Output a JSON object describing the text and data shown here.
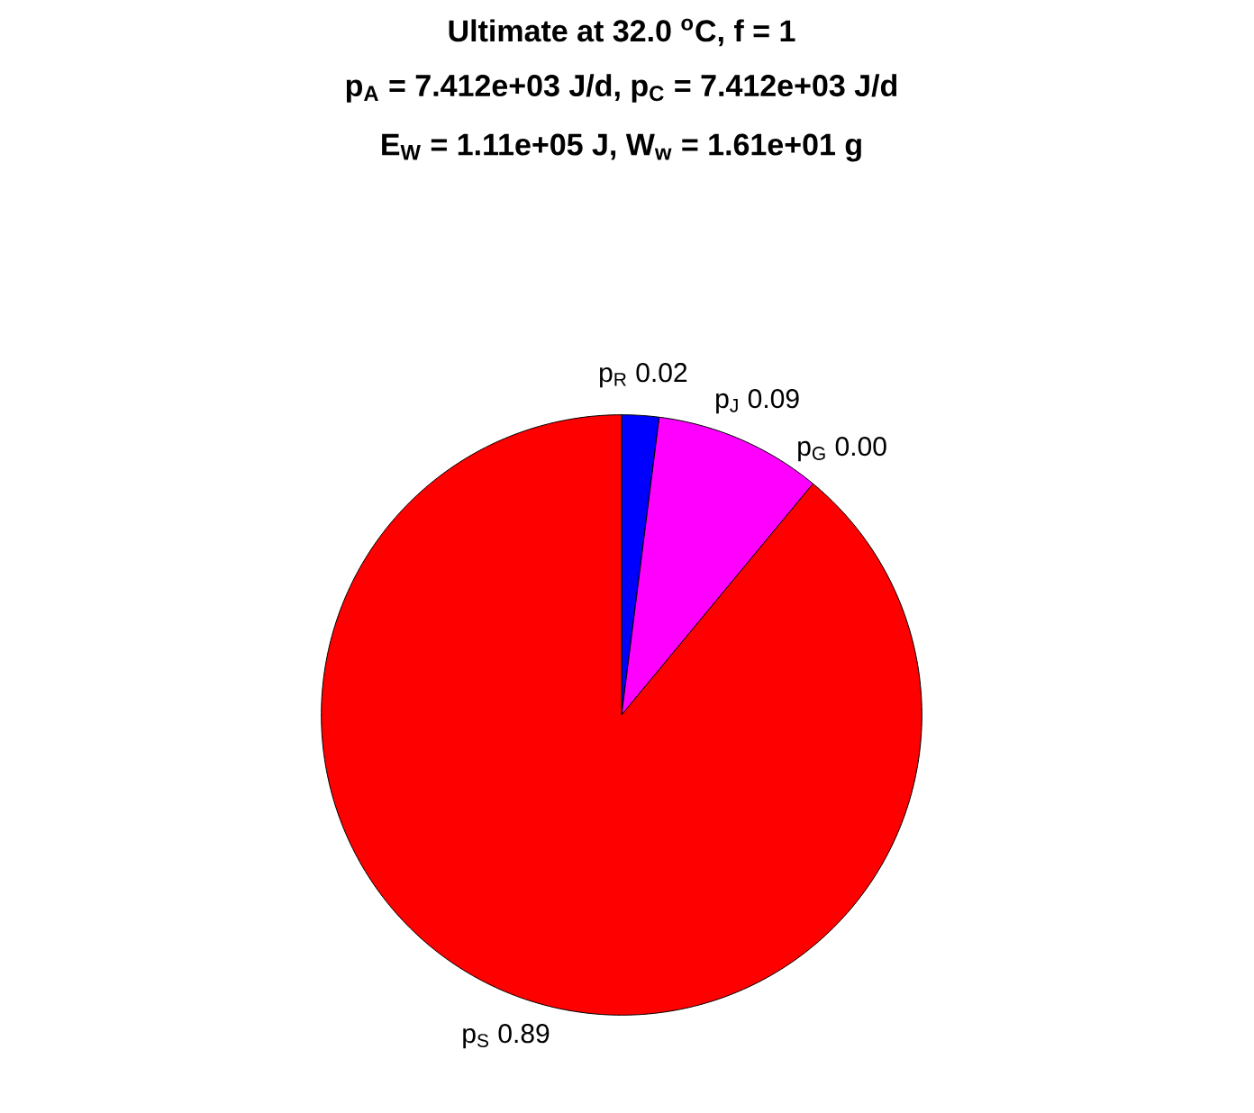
{
  "chart_data": {
    "type": "pie",
    "title": [
      "Ultimate at 32.0 $^{o}$C, f = 1",
      "p$_{A}$ = 7.412e+03 J/d, p$_{C}$ = 7.412e+03 J/d",
      "E$_{W}$ = 1.11e+05 J, W$_{w}$ = 1.61e+01 g"
    ],
    "categories": [
      "p$_{R}$",
      "p$_{J}$",
      "p$_{G}$",
      "p$_{S}$"
    ],
    "values": [
      0.02,
      0.09,
      0.0,
      0.89
    ],
    "value_labels": [
      "0.02",
      "0.09",
      "0.00",
      "0.89"
    ],
    "colors": [
      "#0000ff",
      "#ff00ff",
      "#00ff00",
      "#ff0000"
    ]
  }
}
